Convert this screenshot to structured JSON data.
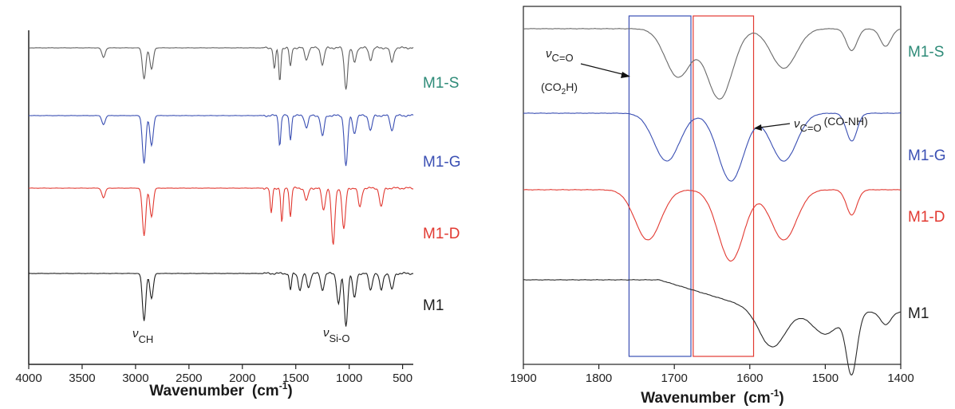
{
  "chart_data": [
    {
      "type": "line",
      "panel": "left",
      "xlabel_main": "Wavenumber",
      "xlabel_unit_open": "(cm",
      "xlabel_unit_sup": "-1",
      "xlabel_unit_close": ")",
      "ylabel": "",
      "xlim": [
        4000,
        400
      ],
      "x_ticks": [
        4000,
        3500,
        3000,
        2500,
        2000,
        1500,
        1000,
        500
      ],
      "y_ticks": [],
      "grid": false,
      "series": [
        {
          "name": "M1-S",
          "color": "#5f5f5f",
          "label_color": "#2e8b78",
          "features": [
            [
              3300,
              0.2
            ],
            [
              2920,
              0.65
            ],
            [
              2850,
              0.45
            ],
            [
              1700,
              0.45
            ],
            [
              1650,
              0.7
            ],
            [
              1550,
              0.4
            ],
            [
              1400,
              0.25
            ],
            [
              1250,
              0.35
            ],
            [
              1030,
              0.85
            ],
            [
              950,
              0.3
            ],
            [
              800,
              0.25
            ],
            [
              600,
              0.3
            ]
          ]
        },
        {
          "name": "M1-G",
          "color": "#3a4fb3",
          "label_color": "#3a4fb3",
          "features": [
            [
              3300,
              0.15
            ],
            [
              2920,
              0.8
            ],
            [
              2850,
              0.5
            ],
            [
              1650,
              0.5
            ],
            [
              1550,
              0.4
            ],
            [
              1400,
              0.2
            ],
            [
              1250,
              0.35
            ],
            [
              1030,
              0.85
            ],
            [
              950,
              0.3
            ],
            [
              800,
              0.25
            ],
            [
              600,
              0.25
            ]
          ]
        },
        {
          "name": "M1-D",
          "color": "#e23a32",
          "label_color": "#e23a32",
          "features": [
            [
              3300,
              0.15
            ],
            [
              2920,
              0.75
            ],
            [
              2850,
              0.45
            ],
            [
              1730,
              0.4
            ],
            [
              1630,
              0.55
            ],
            [
              1550,
              0.45
            ],
            [
              1400,
              0.2
            ],
            [
              1240,
              0.35
            ],
            [
              1150,
              0.9
            ],
            [
              1050,
              0.65
            ],
            [
              900,
              0.3
            ],
            [
              700,
              0.3
            ]
          ]
        },
        {
          "name": "M1",
          "color": "#1e1e1e",
          "label_color": "#1e1e1e",
          "features": [
            [
              2920,
              0.85
            ],
            [
              2850,
              0.45
            ],
            [
              1550,
              0.3
            ],
            [
              1460,
              0.3
            ],
            [
              1380,
              0.25
            ],
            [
              1250,
              0.3
            ],
            [
              1100,
              0.55
            ],
            [
              1030,
              0.95
            ],
            [
              950,
              0.45
            ],
            [
              800,
              0.3
            ],
            [
              700,
              0.3
            ],
            [
              600,
              0.3
            ]
          ]
        }
      ],
      "annotations": [
        {
          "symbol": "ν",
          "subscript": "CH",
          "x": 2920
        },
        {
          "symbol": "ν",
          "subscript": "Si-O",
          "x": 1030
        }
      ]
    },
    {
      "type": "line",
      "panel": "right",
      "xlabel_main": "Wavenumber",
      "xlabel_unit_open": "(cm",
      "xlabel_unit_sup": "-1",
      "xlabel_unit_close": ")",
      "ylabel": "",
      "xlim": [
        1900,
        1400
      ],
      "x_ticks": [
        1900,
        1800,
        1700,
        1600,
        1500,
        1400
      ],
      "y_ticks": [],
      "grid": false,
      "series": [
        {
          "name": "M1-S",
          "color": "#6a6a6a",
          "label_color": "#2e8b78",
          "features": [
            [
              1695,
              0.55
            ],
            [
              1640,
              0.8
            ],
            [
              1555,
              0.45
            ],
            [
              1465,
              0.25
            ],
            [
              1420,
              0.2
            ]
          ]
        },
        {
          "name": "M1-G",
          "color": "#3a4fb3",
          "label_color": "#3a4fb3",
          "features": [
            [
              1710,
              0.6
            ],
            [
              1625,
              0.85
            ],
            [
              1555,
              0.6
            ],
            [
              1465,
              0.35
            ]
          ]
        },
        {
          "name": "M1-D",
          "color": "#e23a32",
          "label_color": "#e23a32",
          "features": [
            [
              1735,
              0.6
            ],
            [
              1625,
              0.85
            ],
            [
              1555,
              0.6
            ],
            [
              1465,
              0.3
            ]
          ]
        },
        {
          "name": "M1",
          "color": "#2a2a2a",
          "label_color": "#1e1e1e",
          "features": [
            [
              1570,
              0.55
            ],
            [
              1500,
              0.35
            ],
            [
              1465,
              0.95
            ],
            [
              1420,
              0.2
            ]
          ]
        }
      ],
      "regions": [
        {
          "x": [
            1760,
            1678
          ],
          "color": "#3a4fb3"
        },
        {
          "x": [
            1675,
            1595
          ],
          "color": "#e23a32"
        }
      ],
      "annotations": [
        {
          "symbol": "ν",
          "subscript": "C=O",
          "line2_open": "(CO",
          "line2_sub": "2",
          "line2_close": "H)"
        },
        {
          "symbol": "ν",
          "subscript": "C=O",
          "suffix": "(CO-NH)"
        }
      ]
    }
  ]
}
